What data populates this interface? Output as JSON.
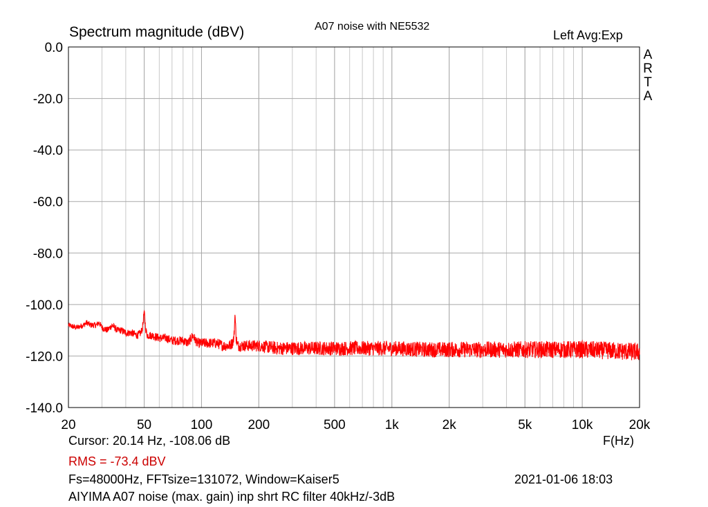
{
  "chart_data": {
    "type": "line",
    "title": "A07 noise with NE5532",
    "ylabel": "Spectrum magnitude (dBV)",
    "xlabel": "F(Hz)",
    "channel_label": "Left  Avg:Exp",
    "vertical_label": [
      "A",
      "R",
      "T",
      "A"
    ],
    "x_scale": "log",
    "xlim": [
      20,
      20000
    ],
    "ylim": [
      -140,
      0
    ],
    "grid": true,
    "y_ticks": [
      0,
      -20,
      -40,
      -60,
      -80,
      -100,
      -120,
      -140
    ],
    "y_tick_labels": [
      "0.0",
      "-20.0",
      "-40.0",
      "-60.0",
      "-80.0",
      "-100.0",
      "-120.0",
      "-140.0"
    ],
    "x_ticks": [
      20,
      50,
      100,
      200,
      500,
      1000,
      2000,
      5000,
      10000,
      20000
    ],
    "x_tick_labels": [
      "20",
      "50",
      "100",
      "200",
      "500",
      "1k",
      "2k",
      "5k",
      "10k",
      "20k"
    ],
    "series_color": "#ff0000",
    "series": [
      {
        "x": [
          20,
          22,
          24,
          25,
          26,
          28,
          29,
          30,
          32,
          34,
          36,
          38,
          40,
          43,
          46,
          48,
          49,
          50,
          51,
          52,
          55,
          60,
          65,
          70,
          75,
          80,
          85,
          90,
          95,
          100,
          105,
          110,
          120,
          130,
          140,
          145,
          148,
          150,
          152,
          155,
          160,
          170,
          180,
          200,
          250,
          300,
          400,
          500,
          700,
          1000,
          1500,
          2000,
          3000,
          5000,
          7000,
          10000,
          15000,
          20000
        ],
        "y": [
          -108,
          -109,
          -108,
          -107,
          -108,
          -108,
          -107,
          -109,
          -110,
          -108,
          -110,
          -110,
          -111,
          -111,
          -112,
          -111,
          -109,
          -102.5,
          -110,
          -112,
          -112,
          -113,
          -113,
          -114,
          -114,
          -114,
          -115,
          -112,
          -115,
          -115,
          -115,
          -115,
          -115,
          -116,
          -116,
          -115,
          -113,
          -104,
          -113,
          -116,
          -116,
          -116,
          -116,
          -116,
          -117,
          -117,
          -117,
          -117,
          -117,
          -117,
          -117.5,
          -117.5,
          -117.5,
          -117.5,
          -117.5,
          -117.5,
          -118,
          -118.5
        ]
      }
    ]
  },
  "footer": {
    "cursor": "Cursor: 20.14 Hz, -108.06 dB",
    "rms": "RMS =  -73.4 dBV",
    "fs_line": "Fs=48000Hz, FFTsize=131072, Window=Kaiser5",
    "datetime": "2021-01-06  18:03",
    "note": "AIYIMA A07 noise (max. gain) inp shrt RC filter 40kHz/-3dB"
  }
}
